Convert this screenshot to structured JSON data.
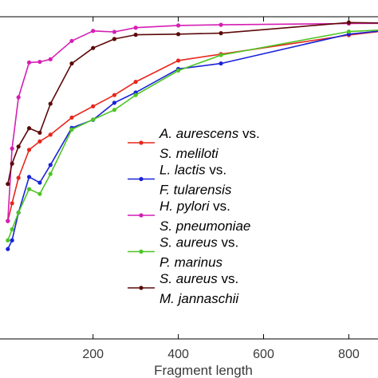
{
  "chart_data": {
    "type": "line",
    "xlabel": "Fragment length",
    "ylabel": "",
    "title": "",
    "xlim": [
      -10,
      920
    ],
    "ylim": [
      0,
      1.0
    ],
    "xticks": [
      200,
      400,
      600,
      800
    ],
    "xtick_labels": [
      "200",
      "400",
      "600",
      "800"
    ],
    "grid": false,
    "legend_position": "center-right",
    "series": [
      {
        "name_line1": "A. aurescens vs.",
        "name_italic_1": "A. aurescens",
        "name_suffix_1": " vs.",
        "name_line2": "S. meliloti",
        "color": "#e8261c",
        "x": [
          0,
          10,
          25,
          50,
          75,
          100,
          150,
          200,
          250,
          300,
          400,
          500,
          800,
          920
        ],
        "y": [
          0.366,
          0.421,
          0.5,
          0.587,
          0.613,
          0.634,
          0.687,
          0.722,
          0.757,
          0.798,
          0.864,
          0.884,
          0.943,
          0.962
        ]
      },
      {
        "name_line1": "L. lactis vs.",
        "name_italic_1": "L. lactis",
        "name_suffix_1": " vs.",
        "name_line2": "F. tularensis",
        "color": "#1a22d8",
        "x": [
          0,
          10,
          25,
          50,
          75,
          100,
          150,
          200,
          250,
          300,
          400,
          500,
          800,
          920
        ],
        "y": [
          0.279,
          0.306,
          0.392,
          0.503,
          0.485,
          0.54,
          0.655,
          0.68,
          0.733,
          0.765,
          0.838,
          0.855,
          0.946,
          0.962
        ]
      },
      {
        "name_line1": "H. pylori vs.",
        "name_italic_1": "H. pylori",
        "name_suffix_1": " vs.",
        "name_line2": "S. pneumoniae",
        "color": "#d41fb3",
        "x": [
          0,
          10,
          25,
          50,
          75,
          100,
          150,
          200,
          250,
          300,
          400,
          500,
          800,
          920
        ],
        "y": [
          0.366,
          0.591,
          0.75,
          0.858,
          0.86,
          0.868,
          0.925,
          0.956,
          0.953,
          0.966,
          0.973,
          0.975,
          0.979,
          0.98
        ]
      },
      {
        "name_line1": "S. aureus vs.",
        "name_italic_1": "S. aureus",
        "name_suffix_1": " vs.",
        "name_line2": "P. marinus",
        "color": "#4ec524",
        "x": [
          0,
          10,
          25,
          50,
          75,
          100,
          150,
          200,
          250,
          300,
          400,
          500,
          800,
          920
        ],
        "y": [
          0.306,
          0.34,
          0.392,
          0.465,
          0.45,
          0.512,
          0.65,
          0.681,
          0.711,
          0.757,
          0.833,
          0.881,
          0.954,
          0.962
        ]
      },
      {
        "name_line1": "S. aureus vs.",
        "name_italic_1": "S. aureus",
        "name_suffix_1": " vs.",
        "name_line2": "M. jannaschii",
        "color": "#5c0808",
        "x": [
          0,
          10,
          25,
          50,
          75,
          100,
          150,
          200,
          250,
          300,
          400,
          500,
          800,
          920
        ],
        "y": [
          0.481,
          0.544,
          0.597,
          0.654,
          0.64,
          0.73,
          0.855,
          0.903,
          0.931,
          0.944,
          0.946,
          0.949,
          0.982,
          0.98
        ]
      }
    ]
  }
}
